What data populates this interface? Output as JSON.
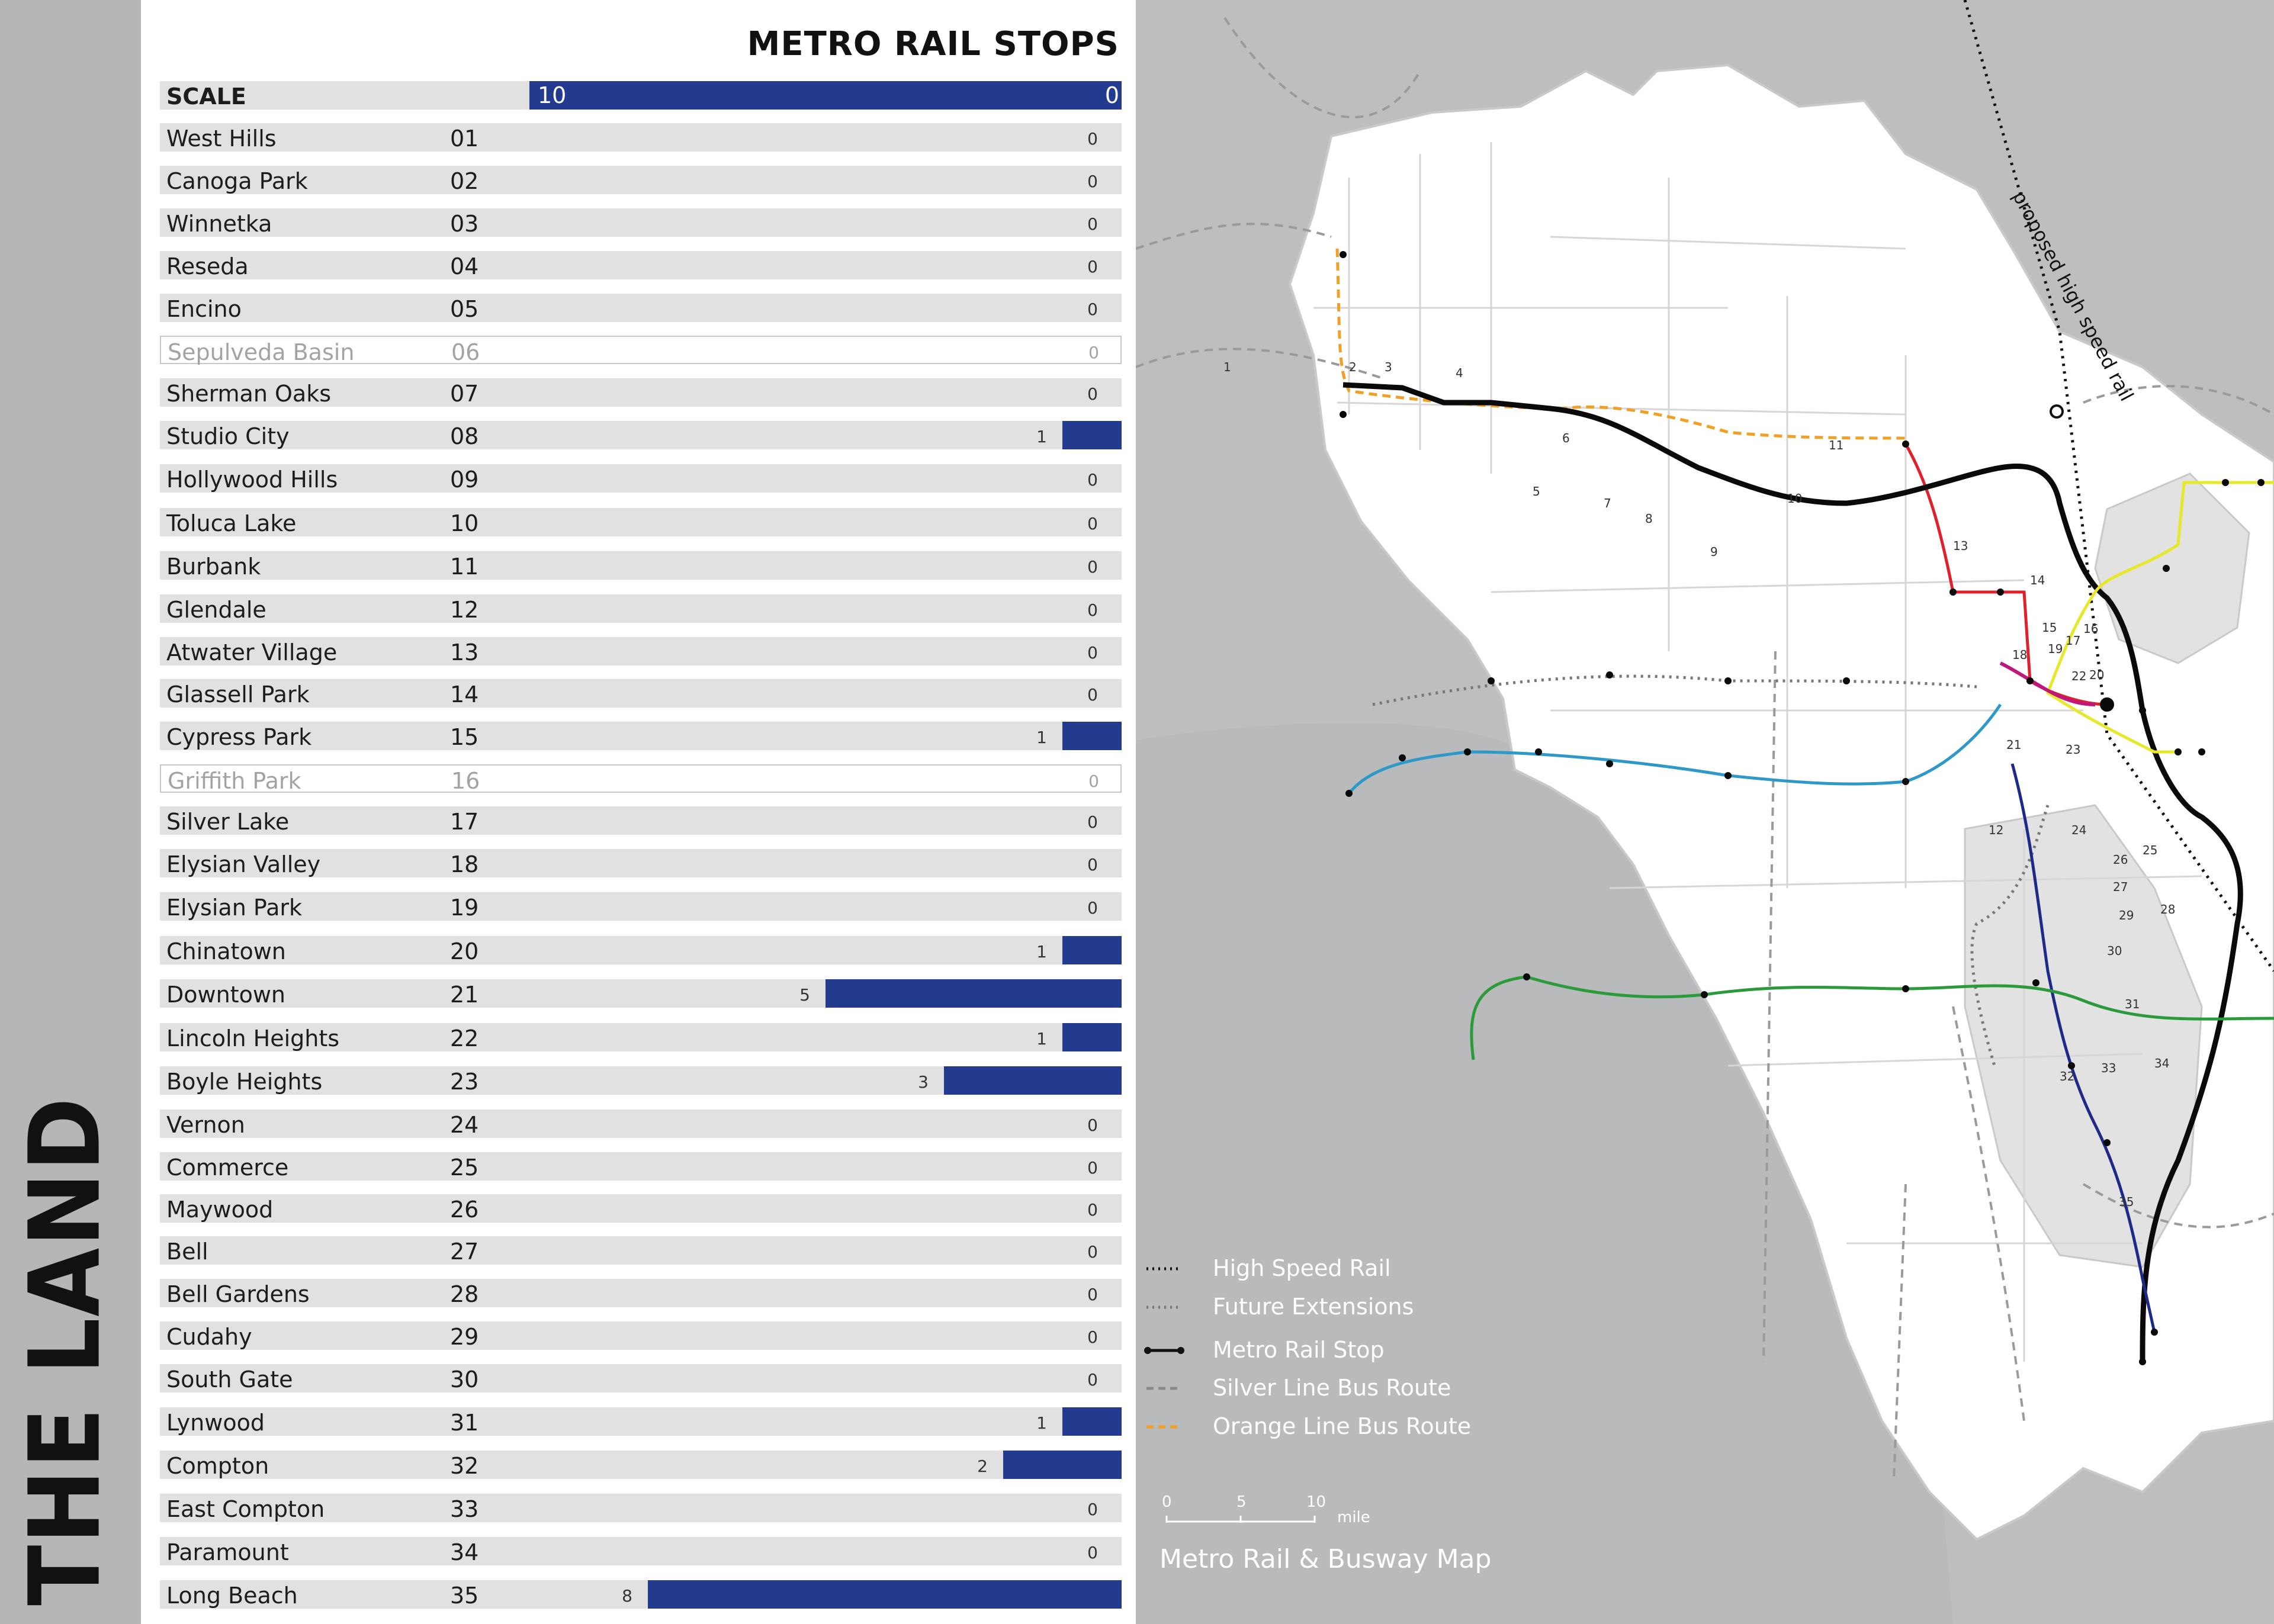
{
  "side_title": "THE LAND",
  "chart_data": {
    "type": "bar",
    "title": "METRO RAIL STOPS",
    "scale_label": "SCALE",
    "scale_left": "10",
    "scale_right": "0",
    "xlim": [
      0,
      10
    ],
    "bar_color": "#233b8e",
    "categories": [
      "West Hills",
      "Canoga Park",
      "Winnetka",
      "Reseda",
      "Encino",
      "Sepulveda Basin",
      "Sherman Oaks",
      "Studio City",
      "Hollywood Hills",
      "Toluca Lake",
      "Burbank",
      "Glendale",
      "Atwater Village",
      "Glassell Park",
      "Cypress Park",
      "Griffith Park",
      "Silver Lake",
      "Elysian Valley",
      "Elysian Park",
      "Chinatown",
      "Downtown",
      "Lincoln Heights",
      "Boyle Heights",
      "Vernon",
      "Commerce",
      "Maywood",
      "Bell",
      "Bell Gardens",
      "Cudahy",
      "South Gate",
      "Lynwood",
      "Compton",
      "East Compton",
      "Paramount",
      "Long Beach"
    ],
    "ids": [
      "01",
      "02",
      "03",
      "04",
      "05",
      "06",
      "07",
      "08",
      "09",
      "10",
      "11",
      "12",
      "13",
      "14",
      "15",
      "16",
      "17",
      "18",
      "19",
      "20",
      "21",
      "22",
      "23",
      "24",
      "25",
      "26",
      "27",
      "28",
      "29",
      "30",
      "31",
      "32",
      "33",
      "34",
      "35"
    ],
    "values": [
      0,
      0,
      0,
      0,
      0,
      0,
      0,
      1,
      0,
      0,
      0,
      0,
      0,
      0,
      1,
      0,
      0,
      0,
      0,
      1,
      5,
      1,
      3,
      0,
      0,
      0,
      0,
      0,
      0,
      0,
      1,
      2,
      0,
      0,
      8
    ],
    "muted": [
      "06",
      "16"
    ]
  },
  "map": {
    "title": "Metro Rail & Busway Map",
    "high_speed_label": "proposed high speed rail",
    "legend": [
      {
        "label": "High Speed Rail",
        "style": "dotted-black"
      },
      {
        "label": "Future Extensions",
        "style": "dotted-gray"
      },
      {
        "label": "Metro Rail Stop",
        "style": "solid-black-dots"
      },
      {
        "label": "Silver Line Bus Route",
        "style": "dashed-gray"
      },
      {
        "label": "Orange Line Bus Route",
        "style": "dashed-orange"
      }
    ],
    "scale_ticks": [
      "0",
      "5",
      "10"
    ],
    "scale_unit": "mile",
    "line_colors": {
      "black": "#0a0a0a",
      "red": "#e0202a",
      "orange": "#f2a024",
      "yellow": "#e8e82a",
      "blue": "#2e98c8",
      "navy": "#1f2a88",
      "green": "#2a9a3a",
      "magenta": "#c0187a"
    },
    "district_labels": [
      "1",
      "2",
      "3",
      "4",
      "5",
      "6",
      "7",
      "8",
      "9",
      "10",
      "11",
      "12",
      "13",
      "14",
      "15",
      "16",
      "17",
      "18",
      "19",
      "20",
      "21",
      "22",
      "23",
      "24",
      "25",
      "26",
      "27",
      "28",
      "29",
      "30",
      "31",
      "32",
      "33",
      "34",
      "35"
    ]
  }
}
